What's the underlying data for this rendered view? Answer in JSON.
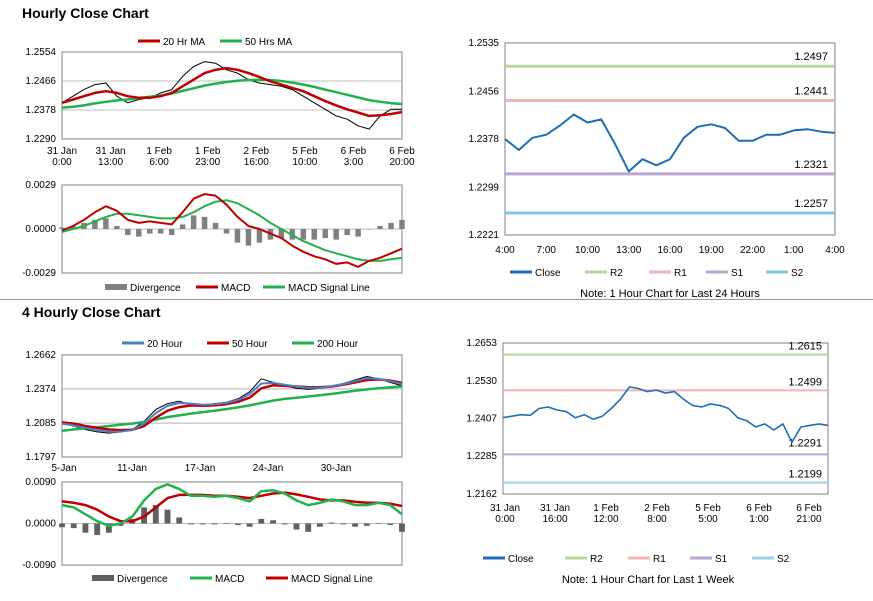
{
  "sections": {
    "hourly_title": "Hourly Close Chart",
    "four_hourly_title": "4 Hourly Close Chart"
  },
  "chart_data": [
    {
      "type": "line",
      "id": "hourly-ma",
      "legend": [
        "20 Hr MA",
        "50 Hrs MA"
      ],
      "colors": {
        "price": "#000000",
        "ma20": "#c00000",
        "ma50": "#22b14c"
      },
      "y_ticks": [
        "1.2554",
        "1.2466",
        "1.2378",
        "1.2290"
      ],
      "ylim": [
        1.229,
        1.2554
      ],
      "x_ticks": [
        "31 Jan\n0:00",
        "31 Jan\n13:00",
        "1 Feb\n6:00",
        "1 Feb\n23:00",
        "2 Feb\n16:00",
        "5 Feb\n10:00",
        "6 Feb\n3:00",
        "6 Feb\n20:00"
      ],
      "series": [
        {
          "name": "Close",
          "values": [
            1.24,
            1.242,
            1.244,
            1.2455,
            1.246,
            1.242,
            1.24,
            1.241,
            1.2415,
            1.243,
            1.244,
            1.248,
            1.251,
            1.2525,
            1.252,
            1.25,
            1.249,
            1.247,
            1.246,
            1.2455,
            1.245,
            1.244,
            1.242,
            1.24,
            1.238,
            1.236,
            1.235,
            1.233,
            1.232,
            1.236,
            1.238,
            1.238
          ]
        },
        {
          "name": "20 Hr MA",
          "values": [
            1.24,
            1.241,
            1.242,
            1.243,
            1.2435,
            1.243,
            1.242,
            1.2415,
            1.2415,
            1.242,
            1.243,
            1.245,
            1.247,
            1.249,
            1.25,
            1.2505,
            1.25,
            1.249,
            1.2478,
            1.2465,
            1.2455,
            1.2445,
            1.2435,
            1.242,
            1.2405,
            1.2392,
            1.238,
            1.237,
            1.236,
            1.2362,
            1.2366,
            1.2372
          ]
        },
        {
          "name": "50 Hrs MA",
          "values": [
            1.2385,
            1.2388,
            1.2392,
            1.2398,
            1.2403,
            1.2407,
            1.241,
            1.2414,
            1.2418,
            1.2422,
            1.2428,
            1.2436,
            1.2444,
            1.2452,
            1.2458,
            1.2463,
            1.2467,
            1.2469,
            1.247,
            1.2469,
            1.2466,
            1.2461,
            1.2455,
            1.2448,
            1.244,
            1.2432,
            1.2424,
            1.2416,
            1.2408,
            1.2403,
            1.2399,
            1.2396
          ]
        }
      ]
    },
    {
      "type": "line",
      "id": "hourly-macd",
      "legend": [
        "Divergence",
        "MACD",
        "MACD Signal Line"
      ],
      "colors": {
        "divergence": "#808080",
        "macd": "#c00000",
        "signal": "#22b14c"
      },
      "y_ticks": [
        "0.0029",
        "0.0000",
        "-0.0029"
      ],
      "ylim": [
        -0.0029,
        0.0029
      ],
      "series": [
        {
          "name": "MACD",
          "values": [
            -0.0001,
            0.0002,
            0.0006,
            0.0011,
            0.0015,
            0.0012,
            0.0006,
            0.0004,
            0.0005,
            0.0004,
            0.0003,
            0.0011,
            0.002,
            0.0023,
            0.0022,
            0.0016,
            0.0008,
            0.0002,
            0.0,
            -0.0003,
            -0.0006,
            -0.0011,
            -0.0015,
            -0.0018,
            -0.002,
            -0.0023,
            -0.0022,
            -0.0025,
            -0.0021,
            -0.0019,
            -0.0016,
            -0.0013
          ]
        },
        {
          "name": "MACD Signal Line",
          "values": [
            -0.0002,
            0.0,
            0.0002,
            0.0005,
            0.0008,
            0.001,
            0.001,
            0.0009,
            0.0008,
            0.0007,
            0.0007,
            0.0008,
            0.0011,
            0.0015,
            0.0018,
            0.0019,
            0.0017,
            0.0013,
            0.0009,
            0.0004,
            0.0,
            -0.0004,
            -0.0008,
            -0.0011,
            -0.0014,
            -0.0016,
            -0.0018,
            -0.002,
            -0.0021,
            -0.0021,
            -0.002,
            -0.0019
          ]
        }
      ]
    },
    {
      "type": "line",
      "id": "hourly-levels",
      "legend": [
        "Close",
        "R2",
        "R1",
        "S1",
        "S2"
      ],
      "note": "Note: 1 Hour Chart for Last 24 Hours",
      "colors": {
        "close": "#1f6eb5",
        "r2": "#b5d69a",
        "r1": "#f0b5b5",
        "s1": "#b9a4d2",
        "s2": "#7fc7e1"
      },
      "y_ticks": [
        "1.2535",
        "1.2456",
        "1.2378",
        "1.2299",
        "1.2221"
      ],
      "ylim": [
        1.2221,
        1.2535
      ],
      "x_ticks": [
        "4:00",
        "7:00",
        "10:00",
        "13:00",
        "16:00",
        "19:00",
        "22:00",
        "1:00",
        "4:00"
      ],
      "levels": [
        {
          "name": "R2",
          "value": 1.2497,
          "label": "1.2497"
        },
        {
          "name": "R1",
          "value": 1.2441,
          "label": "1.2441"
        },
        {
          "name": "S1",
          "value": 1.2321,
          "label": "1.2321"
        },
        {
          "name": "S2",
          "value": 1.2257,
          "label": "1.2257"
        }
      ],
      "series": [
        {
          "name": "Close",
          "values": [
            1.2378,
            1.236,
            1.238,
            1.2385,
            1.24,
            1.2418,
            1.2405,
            1.241,
            1.237,
            1.2325,
            1.2345,
            1.2335,
            1.2345,
            1.238,
            1.2398,
            1.2402,
            1.2396,
            1.2375,
            1.2375,
            1.2385,
            1.2385,
            1.2392,
            1.2394,
            1.239,
            1.2388
          ]
        }
      ]
    },
    {
      "type": "line",
      "id": "four-hourly-ma",
      "legend": [
        "20 Hour",
        "50 Hour",
        "200 Hour"
      ],
      "colors": {
        "price": "#000000",
        "ma20": "#4a7fc1",
        "ma50": "#c00000",
        "ma200": "#22b14c"
      },
      "y_ticks": [
        "1.2662",
        "1.2374",
        "1.2085",
        "1.1797"
      ],
      "ylim": [
        1.1797,
        1.2662
      ],
      "x_ticks": [
        "5-Jan",
        "11-Jan",
        "17-Jan",
        "24-Jan",
        "30-Jan"
      ],
      "series": [
        {
          "name": "Close",
          "values": [
            1.208,
            1.206,
            1.203,
            1.201,
            1.2,
            1.201,
            1.203,
            1.21,
            1.22,
            1.225,
            1.227,
            1.224,
            1.223,
            1.225,
            1.226,
            1.229,
            1.235,
            1.246,
            1.243,
            1.24,
            1.238,
            1.237,
            1.238,
            1.24,
            1.242,
            1.245,
            1.248,
            1.246,
            1.243,
            1.24
          ]
        },
        {
          "name": "20 Hour",
          "values": [
            1.208,
            1.2065,
            1.2045,
            1.2025,
            1.201,
            1.2012,
            1.2025,
            1.208,
            1.217,
            1.223,
            1.2255,
            1.225,
            1.224,
            1.2245,
            1.2255,
            1.228,
            1.233,
            1.242,
            1.2425,
            1.241,
            1.2395,
            1.2385,
            1.2385,
            1.2398,
            1.2415,
            1.244,
            1.2465,
            1.246,
            1.244,
            1.2415
          ]
        },
        {
          "name": "50 Hour",
          "values": [
            1.209,
            1.208,
            1.206,
            1.2045,
            1.203,
            1.2025,
            1.2028,
            1.206,
            1.213,
            1.219,
            1.222,
            1.2235,
            1.2232,
            1.2235,
            1.2245,
            1.2265,
            1.23,
            1.238,
            1.2405,
            1.24,
            1.2395,
            1.239,
            1.2388,
            1.2395,
            1.241,
            1.243,
            1.245,
            1.2455,
            1.2445,
            1.2425
          ]
        },
        {
          "name": "200 Hour",
          "values": [
            1.202,
            1.203,
            1.204,
            1.205,
            1.206,
            1.207,
            1.208,
            1.2095,
            1.2115,
            1.2135,
            1.215,
            1.2165,
            1.2178,
            1.219,
            1.2203,
            1.2218,
            1.2235,
            1.2255,
            1.2275,
            1.229,
            1.23,
            1.231,
            1.232,
            1.2332,
            1.2345,
            1.2358,
            1.237,
            1.238,
            1.2388,
            1.2395
          ]
        }
      ]
    },
    {
      "type": "line",
      "id": "four-hourly-macd",
      "legend": [
        "Divergence",
        "MACD",
        "MACD Signal Line"
      ],
      "colors": {
        "divergence": "#606060",
        "macd": "#22b14c",
        "signal": "#c00000"
      },
      "y_ticks": [
        "0.0090",
        "0.0000",
        "-0.0090"
      ],
      "ylim": [
        -0.009,
        0.009
      ],
      "series": [
        {
          "name": "MACD",
          "values": [
            0.004,
            0.0035,
            0.002,
            0.0005,
            -0.0005,
            0.0,
            0.0015,
            0.005,
            0.0075,
            0.0085,
            0.0075,
            0.006,
            0.006,
            0.0058,
            0.006,
            0.0055,
            0.0048,
            0.007,
            0.0072,
            0.0065,
            0.005,
            0.004,
            0.0045,
            0.0052,
            0.0048,
            0.004,
            0.004,
            0.0045,
            0.004,
            0.002
          ]
        },
        {
          "name": "MACD Signal Line",
          "values": [
            0.0048,
            0.0045,
            0.004,
            0.003,
            0.0015,
            0.0005,
            0.0005,
            0.0015,
            0.0035,
            0.0055,
            0.0062,
            0.0062,
            0.0062,
            0.006,
            0.006,
            0.0058,
            0.0055,
            0.006,
            0.0065,
            0.0067,
            0.0063,
            0.0058,
            0.0052,
            0.005,
            0.005,
            0.0047,
            0.0045,
            0.0045,
            0.0043,
            0.0038
          ]
        }
      ]
    },
    {
      "type": "line",
      "id": "four-hourly-levels",
      "legend": [
        "Close",
        "R2",
        "R1",
        "S1",
        "S2"
      ],
      "note": "Note: 1 Hour Chart for Last 1 Week",
      "colors": {
        "close": "#1f6eb5",
        "r2": "#b5d69a",
        "r1": "#f0b5b5",
        "s1": "#b9a4d2",
        "s2": "#9fd2e6"
      },
      "y_ticks": [
        "1.2653",
        "1.2530",
        "1.2407",
        "1.2285",
        "1.2162"
      ],
      "ylim": [
        1.2162,
        1.2653
      ],
      "x_ticks": [
        "31 Jan\n0:00",
        "31 Jan\n16:00",
        "1 Feb\n12:00",
        "2 Feb\n8:00",
        "5 Feb\n5:00",
        "6 Feb\n1:00",
        "6 Feb\n21:00"
      ],
      "levels": [
        {
          "name": "R2",
          "value": 1.2615,
          "label": "1.2615"
        },
        {
          "name": "R1",
          "value": 1.2499,
          "label": "1.2499"
        },
        {
          "name": "S1",
          "value": 1.2291,
          "label": "1.2291"
        },
        {
          "name": "S2",
          "value": 1.2199,
          "label": "1.2199"
        }
      ],
      "series": [
        {
          "name": "Close",
          "values": [
            1.241,
            1.2415,
            1.242,
            1.2418,
            1.244,
            1.2445,
            1.2435,
            1.243,
            1.241,
            1.242,
            1.2405,
            1.2415,
            1.244,
            1.247,
            1.251,
            1.2505,
            1.2495,
            1.25,
            1.249,
            1.2495,
            1.247,
            1.245,
            1.2445,
            1.2455,
            1.245,
            1.244,
            1.241,
            1.24,
            1.238,
            1.239,
            1.237,
            1.239,
            1.233,
            1.238,
            1.2385,
            1.239,
            1.2385
          ]
        }
      ]
    }
  ]
}
